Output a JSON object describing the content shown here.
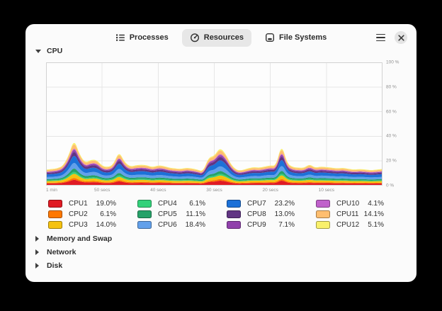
{
  "window": {
    "tabs": [
      {
        "label": "Processes",
        "icon": "process-list-icon",
        "active": false
      },
      {
        "label": "Resources",
        "icon": "speedometer-icon",
        "active": true
      },
      {
        "label": "File Systems",
        "icon": "harddisk-icon",
        "active": false
      }
    ]
  },
  "sections": {
    "cpu": {
      "label": "CPU",
      "expanded": true
    },
    "memory": {
      "label": "Memory and Swap",
      "expanded": false
    },
    "network": {
      "label": "Network",
      "expanded": false
    },
    "disk": {
      "label": "Disk",
      "expanded": false
    }
  },
  "chart_data": {
    "type": "area",
    "stacked": true,
    "grid": true,
    "ylim": [
      0,
      100
    ],
    "y_tick_labels": [
      "100 %",
      "80 %",
      "60 %",
      "40 %",
      "20 %",
      "0 %"
    ],
    "y_gridlines_percent": [
      20,
      40,
      60,
      80
    ],
    "x_tick_labels": [
      "1 min",
      "50 secs",
      "40 secs",
      "30 secs",
      "20 secs",
      "10 secs"
    ],
    "x_tick_positions": [
      0,
      0.1667,
      0.3333,
      0.5,
      0.6667,
      0.8333
    ],
    "legend_position": "bottom",
    "legend_columns": 4,
    "series": [
      {
        "name": "CPU1",
        "percent": 19.0,
        "percent_label": "19.0%",
        "color": "#e01b24"
      },
      {
        "name": "CPU2",
        "percent": 6.1,
        "percent_label": "6.1%",
        "color": "#ff7800"
      },
      {
        "name": "CPU3",
        "percent": 14.0,
        "percent_label": "14.0%",
        "color": "#f5c211"
      },
      {
        "name": "CPU4",
        "percent": 6.1,
        "percent_label": "6.1%",
        "color": "#33d17a"
      },
      {
        "name": "CPU5",
        "percent": 11.1,
        "percent_label": "11.1%",
        "color": "#26a269"
      },
      {
        "name": "CPU6",
        "percent": 18.4,
        "percent_label": "18.4%",
        "color": "#62a0ea"
      },
      {
        "name": "CPU7",
        "percent": 23.2,
        "percent_label": "23.2%",
        "color": "#1c71d8"
      },
      {
        "name": "CPU8",
        "percent": 13.0,
        "percent_label": "13.0%",
        "color": "#613583"
      },
      {
        "name": "CPU9",
        "percent": 7.1,
        "percent_label": "7.1%",
        "color": "#9141ac"
      },
      {
        "name": "CPU10",
        "percent": 4.1,
        "percent_label": "4.1%",
        "color": "#c061cb"
      },
      {
        "name": "CPU11",
        "percent": 14.1,
        "percent_label": "14.1%",
        "color": "#ffbe6f"
      },
      {
        "name": "CPU12",
        "percent": 5.1,
        "percent_label": "5.1%",
        "color": "#f9f06b"
      }
    ],
    "stack_total_percent": [
      13,
      13.5,
      14,
      16,
      24,
      38,
      25,
      18.5,
      21,
      21,
      16,
      15,
      17,
      28,
      19,
      15.5,
      16.5,
      17,
      16.5,
      15,
      16.5,
      16,
      14.5,
      14,
      13.5,
      14.5,
      14,
      13,
      11.5,
      23,
      24,
      31,
      26,
      17,
      12.5,
      12.5,
      14,
      15,
      14.5,
      15.5,
      16.5,
      16,
      34,
      18,
      15,
      14.5,
      14.5,
      17.5,
      14.5,
      15.5,
      15,
      14.5,
      14,
      14.5,
      13.5,
      13,
      13.5,
      13,
      12.5,
      13,
      13.5
    ]
  }
}
